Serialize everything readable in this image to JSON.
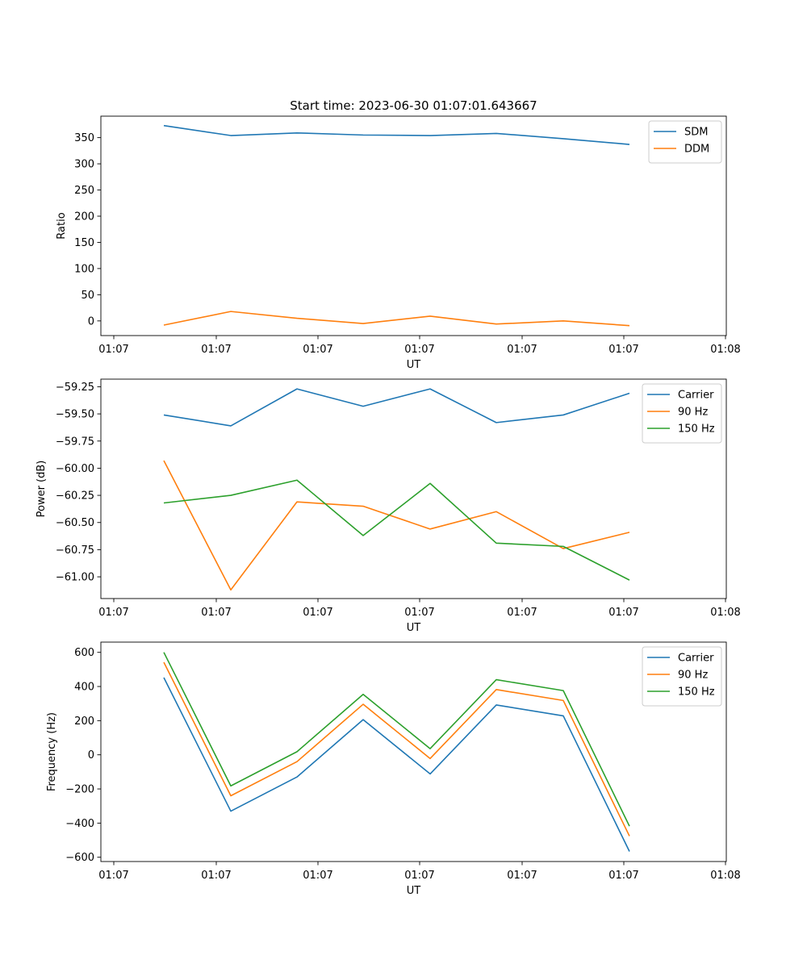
{
  "figure": {
    "title": "Start time: 2023-06-30 01:07:01.643667"
  },
  "chart_data": [
    {
      "type": "line",
      "xlabel": "UT",
      "ylabel": "Ratio",
      "x_tick_labels": [
        "01:07",
        "01:07",
        "01:07",
        "01:07",
        "01:07",
        "01:07",
        "01:08"
      ],
      "ylim": [
        -28,
        391
      ],
      "y_ticks": [
        0,
        50,
        100,
        150,
        200,
        250,
        300,
        350
      ],
      "y_tick_labels": [
        "0",
        "50",
        "100",
        "150",
        "200",
        "250",
        "300",
        "350"
      ],
      "legend_position": "top-right",
      "grid": false,
      "series": [
        {
          "name": "SDM",
          "color": "#1f77b4",
          "values": [
            373,
            354,
            359,
            355,
            354,
            358,
            348,
            337
          ]
        },
        {
          "name": "DDM",
          "color": "#ff7f0e",
          "values": [
            -8,
            18,
            5,
            -5,
            9,
            -6,
            0,
            -9
          ]
        }
      ]
    },
    {
      "type": "line",
      "xlabel": "UT",
      "ylabel": "Power (dB)",
      "x_tick_labels": [
        "01:07",
        "01:07",
        "01:07",
        "01:07",
        "01:07",
        "01:07",
        "01:08"
      ],
      "ylim": [
        -61.2,
        -59.18
      ],
      "y_ticks": [
        -61.0,
        -60.75,
        -60.5,
        -60.25,
        -60.0,
        -59.75,
        -59.5,
        -59.25
      ],
      "y_tick_labels": [
        "−61.00",
        "−60.75",
        "−60.50",
        "−60.25",
        "−60.00",
        "−59.75",
        "−59.50",
        "−59.25"
      ],
      "legend_position": "top-right",
      "grid": false,
      "series": [
        {
          "name": "Carrier",
          "color": "#1f77b4",
          "values": [
            -59.51,
            -59.61,
            -59.27,
            -59.43,
            -59.27,
            -59.58,
            -59.51,
            -59.31
          ]
        },
        {
          "name": "90 Hz",
          "color": "#ff7f0e",
          "values": [
            -59.93,
            -61.12,
            -60.31,
            -60.35,
            -60.56,
            -60.4,
            -60.74,
            -60.59
          ]
        },
        {
          "name": "150 Hz",
          "color": "#2ca02c",
          "values": [
            -60.32,
            -60.25,
            -60.11,
            -60.62,
            -60.14,
            -60.69,
            -60.72,
            -61.03
          ]
        }
      ]
    },
    {
      "type": "line",
      "xlabel": "UT",
      "ylabel": "Frequency (Hz)",
      "x_tick_labels": [
        "01:07",
        "01:07",
        "01:07",
        "01:07",
        "01:07",
        "01:07",
        "01:08"
      ],
      "ylim": [
        -625,
        660
      ],
      "y_ticks": [
        -600,
        -400,
        -200,
        0,
        200,
        400,
        600
      ],
      "y_tick_labels": [
        "−600",
        "−400",
        "−200",
        "0",
        "200",
        "400",
        "600"
      ],
      "legend_position": "top-right",
      "grid": false,
      "series": [
        {
          "name": "Carrier",
          "color": "#1f77b4",
          "values": [
            452,
            -330,
            -130,
            206,
            -112,
            292,
            228,
            -566
          ]
        },
        {
          "name": "90 Hz",
          "color": "#ff7f0e",
          "values": [
            542,
            -240,
            -40,
            296,
            -22,
            382,
            318,
            -476
          ]
        },
        {
          "name": "150 Hz",
          "color": "#2ca02c",
          "values": [
            600,
            -182,
            18,
            354,
            36,
            440,
            376,
            -418
          ]
        }
      ]
    }
  ]
}
